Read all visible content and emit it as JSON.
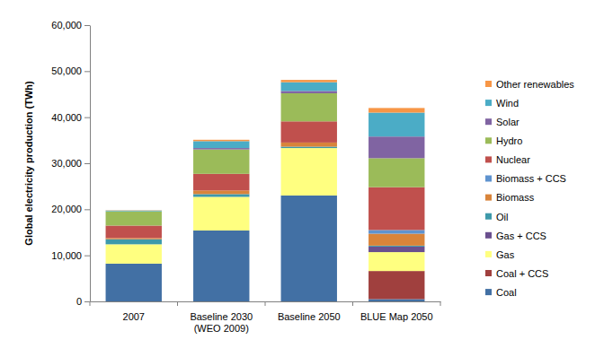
{
  "chart_data": {
    "type": "bar",
    "stacked": true,
    "legend": "right",
    "grid": false,
    "y_label": "Global electricity production (TWh)",
    "categories": [
      "2007",
      "Baseline 2030\n(WEO 2009)",
      "Baseline 2050",
      "BLUE Map 2050"
    ],
    "ylim": [
      0,
      60000
    ],
    "yticks": [
      0,
      {
        "value": 10000,
        "label": "10,000"
      },
      {
        "value": 20000,
        "label": "20,000"
      },
      {
        "value": 30000,
        "label": "30,000"
      },
      {
        "value": 40000,
        "label": "40,000"
      },
      {
        "value": 50000,
        "label": "50,000"
      },
      {
        "value": 60000,
        "label": "60,000"
      }
    ],
    "series": [
      {
        "name": "Coal",
        "color": "#4270a4",
        "values": [
          8200,
          15400,
          23000,
          500
        ]
      },
      {
        "name": "Coal + CCS",
        "color": "#a0403e",
        "values": [
          0,
          0,
          0,
          6100
        ]
      },
      {
        "name": "Gas",
        "color": "#ffff80",
        "values": [
          4200,
          7300,
          10300,
          4100
        ]
      },
      {
        "name": "Gas + CCS",
        "color": "#6a4f8e",
        "values": [
          0,
          0,
          0,
          1200
        ]
      },
      {
        "name": "Oil",
        "color": "#3d99aa",
        "values": [
          1100,
          600,
          300,
          200
        ]
      },
      {
        "name": "Biomass",
        "color": "#d9843a",
        "values": [
          260,
          800,
          900,
          2600
        ]
      },
      {
        "name": "Biomass + CCS",
        "color": "#5f93cf",
        "values": [
          0,
          0,
          0,
          800
        ]
      },
      {
        "name": "Nuclear",
        "color": "#c0504d",
        "values": [
          2700,
          3600,
          4600,
          9300
        ]
      },
      {
        "name": "Hydro",
        "color": "#9bbb59",
        "values": [
          3100,
          5300,
          6100,
          6300
        ]
      },
      {
        "name": "Solar",
        "color": "#8064a2",
        "values": [
          5,
          300,
          500,
          4700
        ]
      },
      {
        "name": "Wind",
        "color": "#4bacc6",
        "values": [
          170,
          1500,
          1900,
          5200
        ]
      },
      {
        "name": "Other renewables",
        "color": "#f79646",
        "values": [
          60,
          300,
          500,
          1000
        ]
      }
    ]
  }
}
